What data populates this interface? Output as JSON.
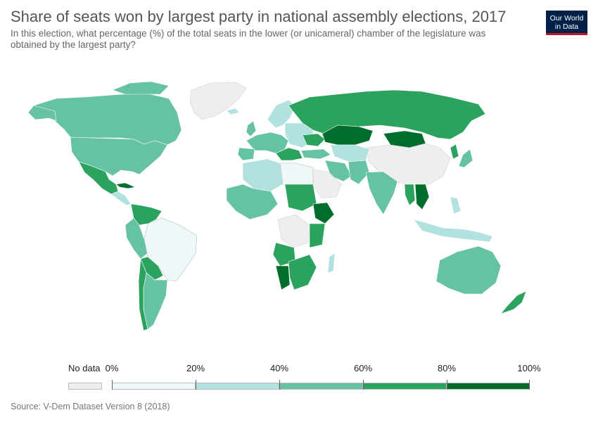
{
  "title": "Share of seats won by largest party in national assembly elections, 2017",
  "subtitle": "In this election, what percentage (%) of the total seats in the lower (or unicameral) chamber of the legislature was obtained by the largest party?",
  "logo": {
    "line1": "Our World",
    "line2": "in Data"
  },
  "source": "Source: V-Dem Dataset Version 8 (2018)",
  "legend": {
    "no_data_label": "No data",
    "tick_labels": [
      "0%",
      "20%",
      "40%",
      "60%",
      "80%",
      "100%"
    ],
    "no_data_color": "#eeeeee",
    "bins": [
      {
        "from": 0,
        "to": 20,
        "color": "#eef8f8"
      },
      {
        "from": 20,
        "to": 40,
        "color": "#b2e2df"
      },
      {
        "from": 40,
        "to": 60,
        "color": "#66c2a4"
      },
      {
        "from": 60,
        "to": 80,
        "color": "#2ca25f"
      },
      {
        "from": 80,
        "to": 100,
        "color": "#006d2c"
      }
    ]
  }
}
